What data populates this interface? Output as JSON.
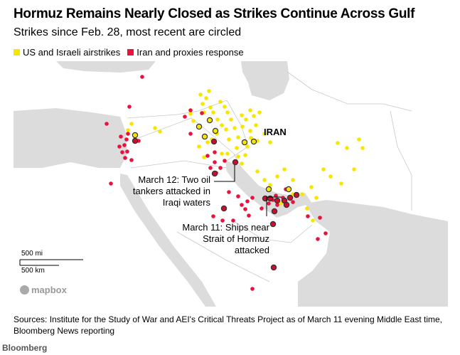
{
  "title": "Hormuz Remains Nearly Closed as Strikes Continue Across Gulf",
  "subtitle": "Strikes since Feb. 28, most recent are circled",
  "legend": [
    {
      "label": "US and Israeli airstrikes",
      "color": "#f7e600"
    },
    {
      "label": "Iran and proxies response",
      "color": "#e8123e"
    }
  ],
  "map": {
    "country_label": "IRAN",
    "annotations": [
      {
        "lines": [
          "March 12: Two oil",
          "tankers attacked in",
          "Iraqi waters"
        ]
      },
      {
        "lines": [
          "March 11: Ships near",
          "Strait of Hormuz",
          "attacked"
        ]
      }
    ],
    "scale": {
      "miles": "500 mi",
      "km": "500 km"
    },
    "attribution": "mapbox",
    "colors": {
      "land": "#ffffff",
      "water": "#dcdcdc",
      "border": "#c8c8c8",
      "circle_outline": "#333333"
    }
  },
  "source": "Sources: Institute for the Study of War and AEI's Critical Threats Project as of March 11 evening Middle East time, Bloomberg News reporting",
  "brand": "Bloomberg"
}
